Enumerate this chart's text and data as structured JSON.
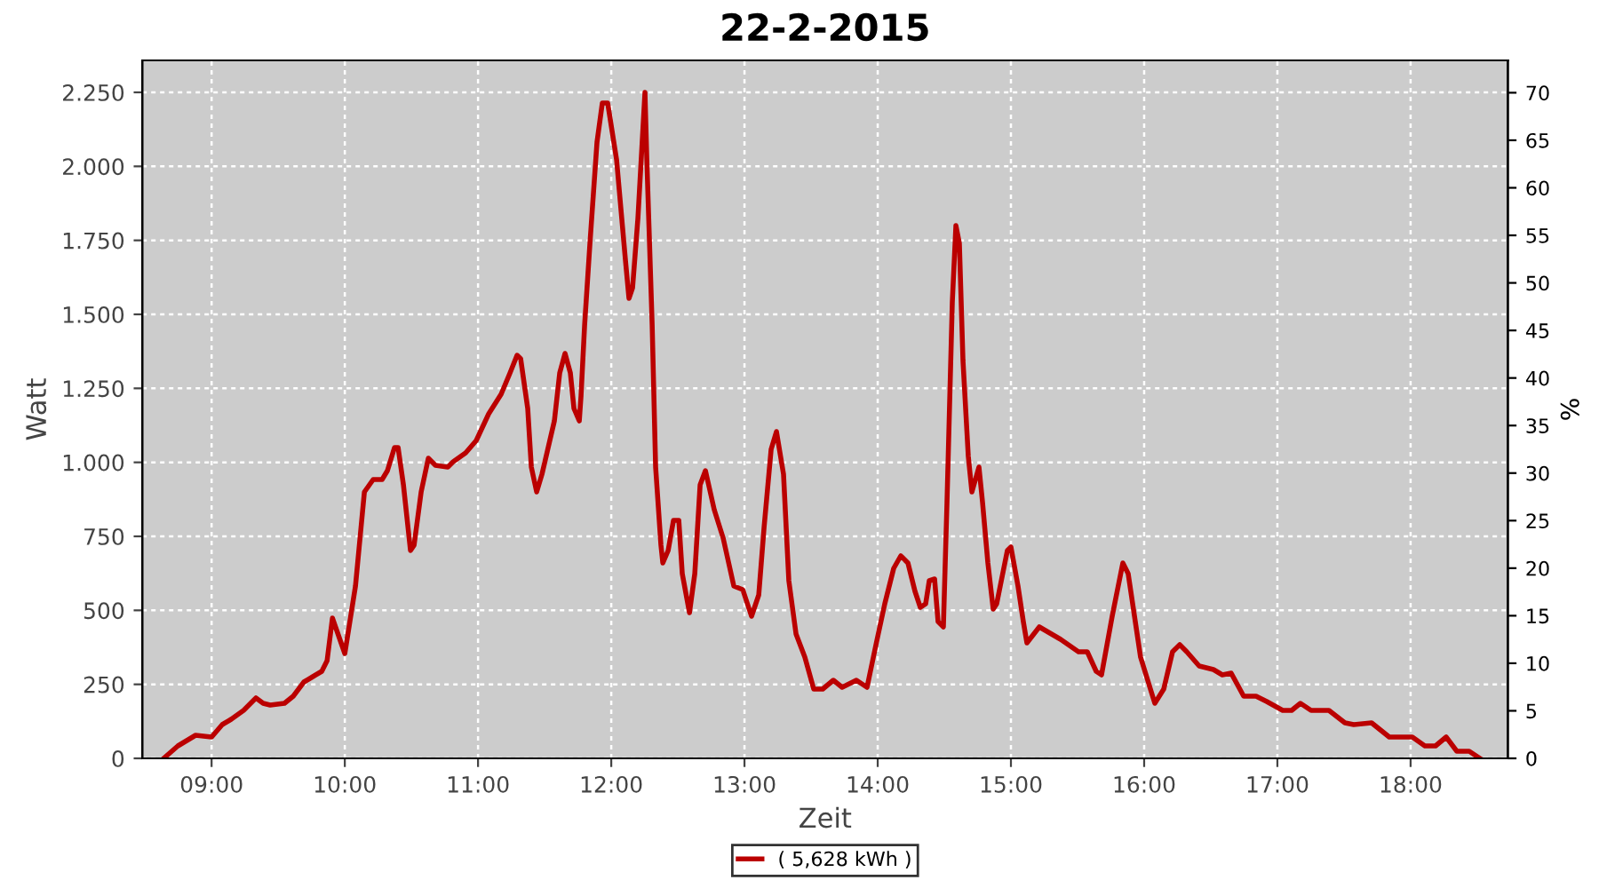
{
  "chart_data": {
    "type": "line",
    "title": "22-2-2015",
    "xlabel": "Zeit",
    "ylabel": "Watt",
    "y2label": "%",
    "xlim": [
      8.48,
      18.73
    ],
    "xticks": [
      {
        "value": 9,
        "label": "09:00"
      },
      {
        "value": 10,
        "label": "10:00"
      },
      {
        "value": 11,
        "label": "11:00"
      },
      {
        "value": 12,
        "label": "12:00"
      },
      {
        "value": 13,
        "label": "13:00"
      },
      {
        "value": 14,
        "label": "14:00"
      },
      {
        "value": 15,
        "label": "15:00"
      },
      {
        "value": 16,
        "label": "16:00"
      },
      {
        "value": 17,
        "label": "17:00"
      },
      {
        "value": 18,
        "label": "18:00"
      }
    ],
    "ylim": [
      0,
      2358
    ],
    "yticks": [
      0,
      250,
      500,
      750,
      {
        "value": 1000,
        "label": "1.000"
      },
      {
        "value": 1250,
        "label": "1.250"
      },
      {
        "value": 1500,
        "label": "1.500"
      },
      {
        "value": 1750,
        "label": "1.750"
      },
      {
        "value": 2000,
        "label": "2.000"
      },
      {
        "value": 2250,
        "label": "2.250"
      }
    ],
    "y2lim": [
      0,
      73.4
    ],
    "y2ticks": [
      0,
      5,
      10,
      15,
      20,
      25,
      30,
      35,
      40,
      45,
      50,
      55,
      60,
      65,
      70
    ],
    "grid": true,
    "legend": "bottom",
    "marker": "none",
    "line_style": "solid",
    "series": [
      {
        "name": "( 5,628 kWh )",
        "color": "#bb0000",
        "x": [
          8.64,
          8.747,
          8.88,
          9.0,
          9.08,
          9.147,
          9.24,
          9.293,
          9.333,
          9.387,
          9.44,
          9.547,
          9.613,
          9.693,
          9.76,
          9.827,
          9.867,
          9.907,
          10.0,
          10.08,
          10.147,
          10.213,
          10.28,
          10.32,
          10.373,
          10.4,
          10.44,
          10.493,
          10.52,
          10.573,
          10.627,
          10.68,
          10.773,
          10.813,
          10.907,
          10.987,
          11.08,
          11.173,
          11.24,
          11.293,
          11.32,
          11.373,
          11.4,
          11.44,
          11.48,
          11.573,
          11.613,
          11.653,
          11.693,
          11.72,
          11.76,
          11.773,
          11.8,
          11.84,
          11.893,
          11.933,
          11.973,
          12.04,
          12.107,
          12.133,
          12.16,
          12.2,
          12.253,
          12.267,
          12.307,
          12.333,
          12.373,
          12.387,
          12.427,
          12.467,
          12.507,
          12.533,
          12.587,
          12.627,
          12.667,
          12.707,
          12.773,
          12.84,
          12.92,
          12.987,
          13.053,
          13.107,
          13.147,
          13.2,
          13.24,
          13.293,
          13.333,
          13.387,
          13.453,
          13.52,
          13.587,
          13.667,
          13.733,
          13.84,
          13.92,
          13.987,
          14.053,
          14.12,
          14.173,
          14.227,
          14.28,
          14.32,
          14.36,
          14.387,
          14.427,
          14.453,
          14.493,
          14.52,
          14.56,
          14.587,
          14.613,
          14.64,
          14.68,
          14.707,
          14.76,
          14.787,
          14.827,
          14.867,
          14.893,
          14.973,
          15.0,
          15.053,
          15.093,
          15.12,
          15.213,
          15.373,
          15.507,
          15.573,
          15.64,
          15.68,
          15.76,
          15.84,
          15.88,
          15.973,
          16.08,
          16.147,
          16.213,
          16.267,
          16.32,
          16.413,
          16.52,
          16.587,
          16.653,
          16.747,
          16.84,
          16.92,
          17.04,
          17.107,
          17.173,
          17.253,
          17.387,
          17.507,
          17.573,
          17.707,
          17.84,
          18.013,
          18.107,
          18.187,
          18.267,
          18.347,
          18.44,
          18.52
        ],
        "values": [
          0,
          42,
          78,
          72,
          114,
          132,
          162,
          186,
          204,
          186,
          180,
          186,
          210,
          258,
          276,
          294,
          330,
          474,
          354,
          582,
          900,
          942,
          942,
          972,
          1050,
          1050,
          924,
          702,
          720,
          900,
          1014,
          990,
          984,
          1002,
          1032,
          1074,
          1164,
          1230,
          1302,
          1362,
          1350,
          1182,
          984,
          900,
          960,
          1140,
          1302,
          1368,
          1302,
          1182,
          1140,
          1224,
          1464,
          1740,
          2082,
          2214,
          2214,
          2022,
          1680,
          1554,
          1590,
          1824,
          2250,
          2022,
          1464,
          984,
          720,
          660,
          702,
          804,
          804,
          624,
          492,
          624,
          924,
          972,
          840,
          744,
          582,
          570,
          480,
          552,
          780,
          1044,
          1104,
          960,
          600,
          420,
          342,
          234,
          234,
          264,
          240,
          264,
          240,
          384,
          522,
          642,
          684,
          660,
          564,
          510,
          522,
          600,
          606,
          462,
          444,
          864,
          1542,
          1800,
          1740,
          1344,
          1020,
          900,
          984,
          864,
          660,
          504,
          522,
          702,
          714,
          582,
          462,
          390,
          444,
          402,
          360,
          360,
          294,
          282,
          480,
          660,
          624,
          342,
          186,
          234,
          360,
          384,
          360,
          312,
          300,
          282,
          288,
          210,
          210,
          192,
          162,
          162,
          186,
          162,
          162,
          120,
          114,
          120,
          72,
          72,
          42,
          42,
          72,
          24,
          24,
          0
        ]
      }
    ]
  }
}
